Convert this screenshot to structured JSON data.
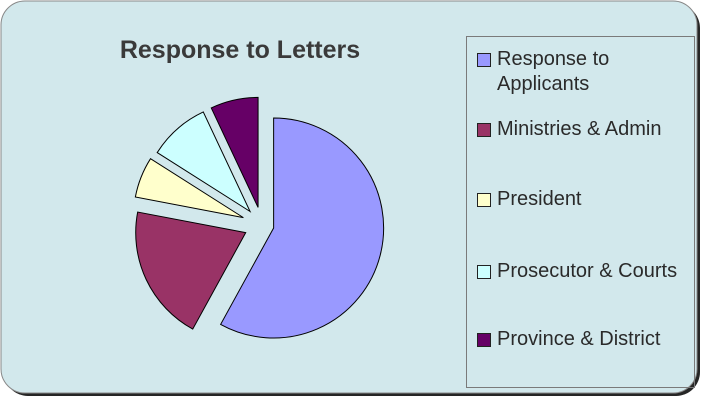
{
  "chart_data": {
    "type": "pie",
    "title": "Response to Letters",
    "categories": [
      "Response to Applicants",
      "Ministries & Admin",
      "President",
      "Prosecutor & Courts",
      "Province & District"
    ],
    "values": [
      58,
      20,
      6,
      9,
      7
    ],
    "colors": [
      "#9999ff",
      "#993366",
      "#ffffcc",
      "#ccffff",
      "#660066"
    ],
    "exploded": true,
    "legend": "right"
  }
}
